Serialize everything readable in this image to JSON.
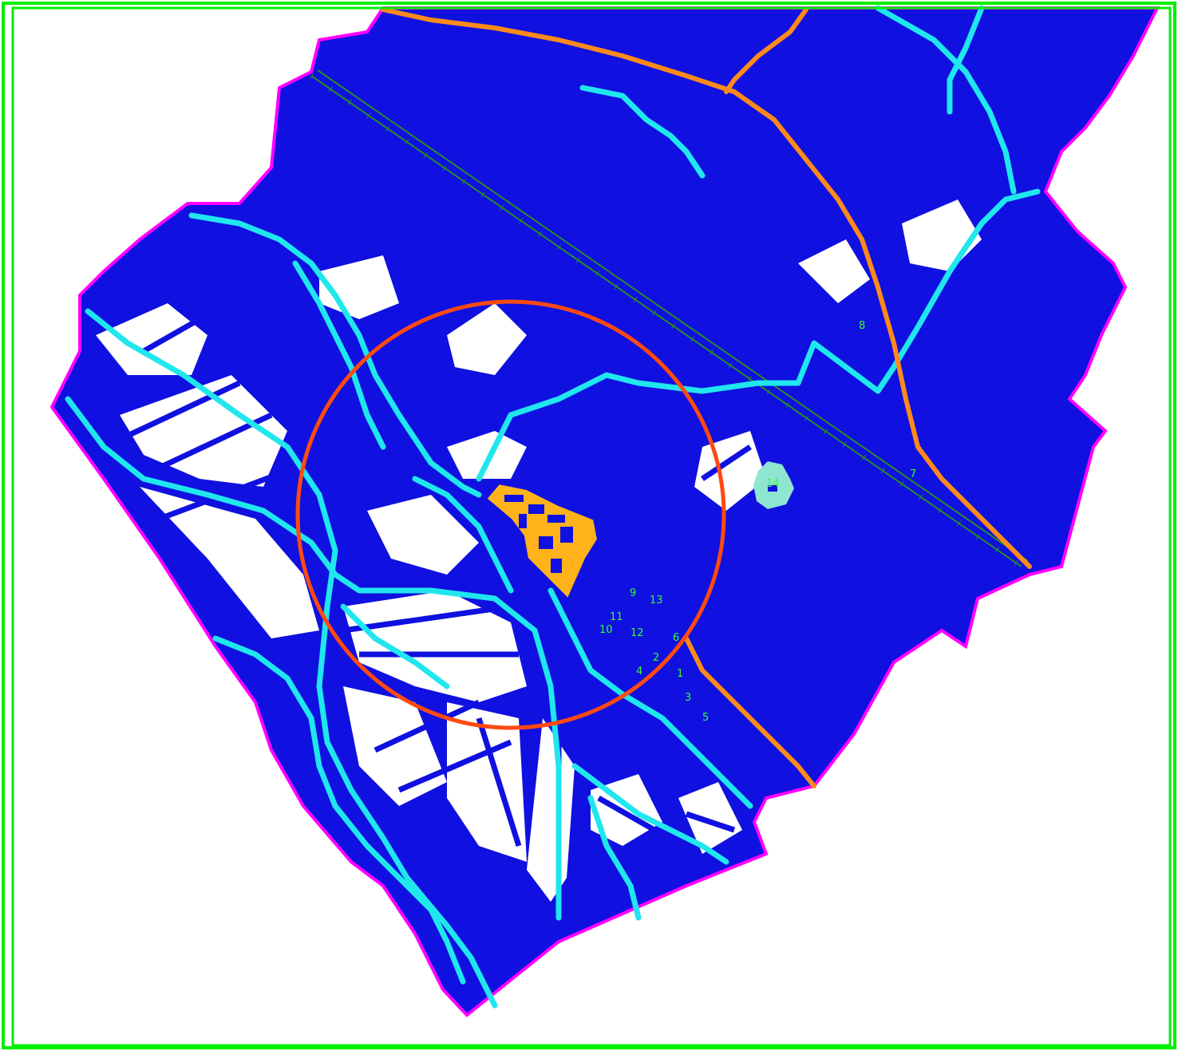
{
  "map": {
    "colors": {
      "frame": "#00ee00",
      "parcel": "#1010e0",
      "boundary": "#ff00ff",
      "river": "#20e6ee",
      "road": "#ff8a1a",
      "buffer_circle": "#ff4a10",
      "site": "#ffb21a",
      "site_outline": "#1010e0",
      "rail": "#2a8a2a",
      "pond": "#8ee6d0",
      "label": "#33ff33",
      "background": "#ffffff"
    },
    "layers": [
      "frame",
      "boundary",
      "parcels",
      "rivers",
      "road",
      "railway",
      "buffer-circle",
      "site",
      "pond",
      "point-labels"
    ],
    "point_labels": [
      {
        "id": "p1",
        "text": "1"
      },
      {
        "id": "p2",
        "text": "2"
      },
      {
        "id": "p3",
        "text": "3"
      },
      {
        "id": "p4",
        "text": "4"
      },
      {
        "id": "p5",
        "text": "5"
      },
      {
        "id": "p6",
        "text": "6"
      },
      {
        "id": "p7",
        "text": "7"
      },
      {
        "id": "p8",
        "text": "8"
      },
      {
        "id": "p9",
        "text": "9"
      },
      {
        "id": "p10",
        "text": "10"
      },
      {
        "id": "p11",
        "text": "11"
      },
      {
        "id": "p12",
        "text": "12"
      },
      {
        "id": "p13",
        "text": "13"
      },
      {
        "id": "p14",
        "text": "14"
      }
    ]
  }
}
